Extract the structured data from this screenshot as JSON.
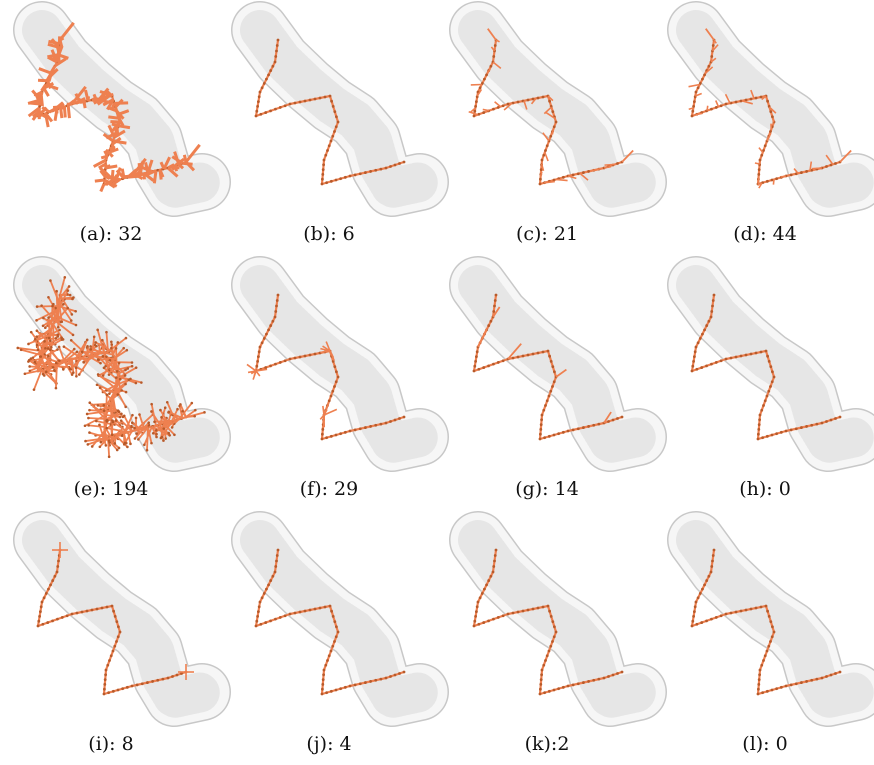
{
  "figure": {
    "panels": [
      {
        "caption": "(a): 32",
        "variant": "spiky"
      },
      {
        "caption": "(b): 6",
        "variant": "clean"
      },
      {
        "caption": "(c): 21",
        "variant": "whiskers"
      },
      {
        "caption": "(d): 44",
        "variant": "whiskers"
      },
      {
        "caption": "(e): 194",
        "variant": "bushy"
      },
      {
        "caption": "(f): 29",
        "variant": "tufts"
      },
      {
        "caption": "(g): 14",
        "variant": "branches"
      },
      {
        "caption": "(h): 0",
        "variant": "clean"
      },
      {
        "caption": "(i): 8",
        "variant": "crosses"
      },
      {
        "caption": "(j): 4",
        "variant": "clean"
      },
      {
        "caption": "(k):2",
        "variant": "clean"
      },
      {
        "caption": "(l): 0",
        "variant": "clean"
      }
    ],
    "colors": {
      "skeleton": "#ee8050",
      "skeleton_dark": "#b85a2a",
      "shape_outline": "#c8c8c8",
      "shape_fill": "#f6f6f6"
    }
  }
}
